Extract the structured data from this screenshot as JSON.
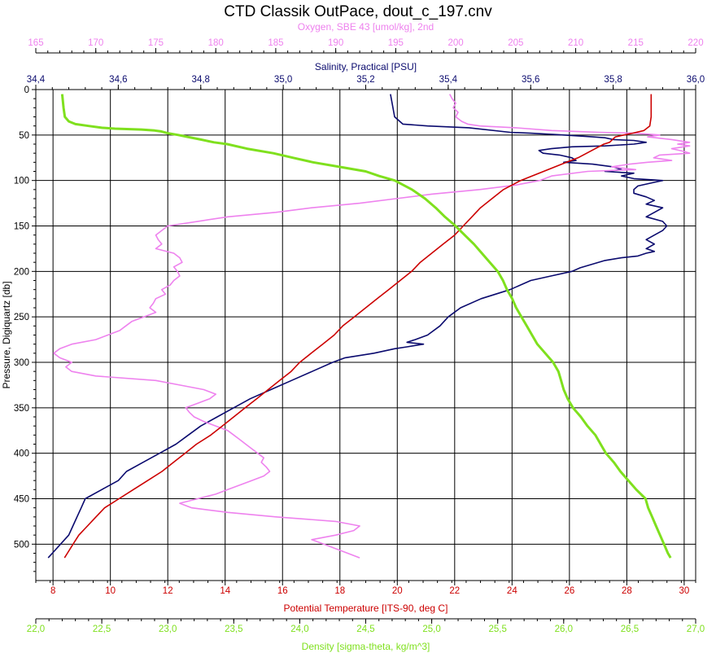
{
  "chart_data": {
    "type": "line",
    "title": "CTD Classik OutPace, dout_c_197.cnv",
    "grid": true,
    "colors": {
      "salinity": "#0a0a6e",
      "oxygen": "#ee82ee",
      "temperature": "#cc0000",
      "density": "#7fe01e"
    },
    "axes": {
      "pressure": {
        "label": "Pressure, Digiquartz [db]",
        "range": [
          0,
          540
        ],
        "reversed": true,
        "ticks": [
          "0",
          "50",
          "100",
          "150",
          "200",
          "250",
          "300",
          "350",
          "400",
          "450",
          "500"
        ]
      },
      "oxygen": {
        "label": "Oxygen, SBE 43 [umol/kg], 2nd",
        "range": [
          165,
          220
        ],
        "ticks": [
          "165",
          "170",
          "175",
          "180",
          "185",
          "190",
          "195",
          "200",
          "205",
          "210",
          "215",
          "220"
        ]
      },
      "salinity": {
        "label": "Salinity, Practical [PSU]",
        "range": [
          34.4,
          36.0
        ],
        "ticks": [
          "34,4",
          "34,6",
          "34,8",
          "35,0",
          "35,2",
          "35,4",
          "35,6",
          "35,8",
          "36,0"
        ]
      },
      "temperature": {
        "label": "Potential Temperature [ITS-90, deg C]",
        "range": [
          7.4,
          30.4
        ],
        "ticks": [
          "8",
          "10",
          "12",
          "14",
          "16",
          "18",
          "20",
          "22",
          "24",
          "26",
          "28",
          "30"
        ]
      },
      "density": {
        "label": "Density [sigma-theta, kg/m^3]",
        "range": [
          22.0,
          27.0
        ],
        "ticks": [
          "22,0",
          "22,5",
          "23,0",
          "23,5",
          "24,0",
          "24,5",
          "25,0",
          "25,5",
          "26,0",
          "26,5",
          "27,0"
        ]
      }
    },
    "series": [
      {
        "key": "salinity",
        "pressure": [
          5,
          30,
          38,
          40,
          42,
          47,
          48,
          50,
          52,
          53,
          55,
          56,
          58,
          60,
          62,
          63,
          65,
          67,
          70,
          72,
          75,
          78,
          80,
          82,
          85,
          88,
          90,
          92,
          95,
          98,
          100,
          102,
          104,
          106,
          110,
          114,
          118,
          122,
          126,
          130,
          135,
          140,
          145,
          150,
          155,
          160,
          165,
          170,
          175,
          178,
          180,
          183,
          185,
          188,
          192,
          196,
          200,
          205,
          210,
          220,
          230,
          240,
          250,
          260,
          270,
          275,
          278,
          280,
          283,
          285,
          290,
          295,
          300,
          310,
          320,
          330,
          340,
          350,
          360,
          370,
          380,
          390,
          400,
          410,
          420,
          430,
          440,
          450,
          460,
          470,
          480,
          490,
          500,
          510,
          515
        ],
        "values": [
          35.26,
          35.27,
          35.29,
          35.35,
          35.45,
          35.55,
          35.6,
          35.68,
          35.75,
          35.78,
          35.8,
          35.85,
          35.88,
          35.85,
          35.78,
          35.7,
          35.65,
          35.62,
          35.63,
          35.67,
          35.7,
          35.71,
          35.68,
          35.75,
          35.8,
          35.82,
          35.78,
          35.85,
          35.82,
          35.85,
          35.92,
          35.9,
          35.88,
          35.86,
          35.85,
          35.85,
          35.88,
          35.9,
          35.88,
          35.92,
          35.9,
          35.88,
          35.92,
          35.93,
          35.92,
          35.9,
          35.88,
          35.9,
          35.88,
          35.9,
          35.88,
          35.86,
          35.82,
          35.78,
          35.75,
          35.72,
          35.7,
          35.65,
          35.6,
          35.55,
          35.48,
          35.43,
          35.4,
          35.38,
          35.35,
          35.32,
          35.3,
          35.34,
          35.3,
          35.27,
          35.22,
          35.15,
          35.12,
          35.07,
          35.02,
          34.97,
          34.92,
          34.88,
          34.84,
          34.8,
          34.77,
          34.74,
          34.7,
          34.66,
          34.62,
          34.6,
          34.56,
          34.52,
          34.51,
          34.5,
          34.49,
          34.48,
          34.46,
          34.44,
          34.43
        ]
      },
      {
        "key": "oxygen",
        "pressure": [
          5,
          10,
          15,
          20,
          25,
          30,
          35,
          38,
          40,
          42,
          45,
          47,
          48,
          50,
          52,
          55,
          58,
          60,
          62,
          65,
          68,
          70,
          72,
          75,
          78,
          80,
          82,
          85,
          88,
          90,
          95,
          100,
          105,
          110,
          115,
          120,
          125,
          130,
          135,
          140,
          145,
          150,
          155,
          160,
          165,
          170,
          175,
          180,
          185,
          190,
          195,
          200,
          205,
          210,
          215,
          220,
          225,
          230,
          235,
          240,
          245,
          250,
          255,
          260,
          265,
          270,
          275,
          280,
          285,
          290,
          295,
          300,
          305,
          310,
          315,
          320,
          325,
          330,
          335,
          340,
          345,
          350,
          355,
          360,
          365,
          370,
          375,
          380,
          385,
          390,
          395,
          400,
          405,
          410,
          415,
          420,
          425,
          430,
          435,
          440,
          445,
          450,
          455,
          460,
          465,
          470,
          475,
          480,
          485,
          490,
          495,
          500,
          505,
          510,
          515
        ],
        "values": [
          199.5,
          199.7,
          200,
          199.8,
          200.2,
          200,
          200.5,
          201,
          202,
          205,
          208,
          212,
          215,
          217,
          216,
          218,
          219.5,
          218.5,
          219.5,
          218,
          219,
          219.5,
          217,
          216.5,
          218,
          216,
          214.5,
          213,
          215,
          211,
          208,
          207,
          205,
          202,
          198,
          195,
          192,
          188,
          185,
          181,
          178.5,
          176,
          175.5,
          175,
          175.2,
          175.5,
          175,
          176.5,
          177,
          177.2,
          176.5,
          176.8,
          177,
          176.5,
          176.2,
          175.5,
          175.8,
          175,
          174.8,
          174.5,
          175,
          174,
          173,
          172.5,
          172,
          171,
          170,
          168,
          167,
          166.5,
          167,
          168,
          167.5,
          168,
          170,
          175,
          177,
          179,
          180,
          179.5,
          178.5,
          177.5,
          177.8,
          178.2,
          179,
          180,
          181,
          181.5,
          182,
          182.5,
          183,
          183.5,
          184,
          183.8,
          184.2,
          184.5,
          184,
          183,
          182,
          181,
          180,
          178.5,
          177,
          178,
          181,
          185,
          190,
          192,
          191.5,
          190,
          188,
          189,
          190,
          191,
          192
        ]
      },
      {
        "key": "temperature",
        "pressure": [
          5,
          20,
          30,
          40,
          45,
          48,
          50,
          52,
          55,
          58,
          60,
          65,
          70,
          75,
          80,
          85,
          90,
          95,
          100,
          110,
          120,
          130,
          140,
          150,
          160,
          170,
          180,
          190,
          200,
          210,
          220,
          230,
          240,
          250,
          260,
          270,
          280,
          290,
          300,
          310,
          320,
          330,
          340,
          350,
          360,
          370,
          380,
          390,
          400,
          410,
          420,
          430,
          440,
          450,
          460,
          470,
          480,
          490,
          500,
          510,
          515
        ],
        "values": [
          28.85,
          28.85,
          28.85,
          28.8,
          28.6,
          28.2,
          27.9,
          27.6,
          27.5,
          27.4,
          27.2,
          26.9,
          26.6,
          26.3,
          25.9,
          25.5,
          25.1,
          24.7,
          24.3,
          23.7,
          23.3,
          22.9,
          22.6,
          22.3,
          22.0,
          21.6,
          21.2,
          20.8,
          20.5,
          20.1,
          19.7,
          19.3,
          18.9,
          18.5,
          18.1,
          17.8,
          17.4,
          17.0,
          16.6,
          16.3,
          15.9,
          15.5,
          15.1,
          14.7,
          14.3,
          13.9,
          13.5,
          13.0,
          12.6,
          12.2,
          11.8,
          11.3,
          10.8,
          10.3,
          9.8,
          9.5,
          9.2,
          8.9,
          8.7,
          8.5,
          8.4
        ]
      },
      {
        "key": "density",
        "pressure": [
          5,
          20,
          30,
          35,
          38,
          40,
          42,
          43,
          44,
          45,
          46,
          48,
          50,
          52,
          55,
          58,
          60,
          65,
          70,
          75,
          80,
          85,
          90,
          95,
          100,
          110,
          120,
          130,
          140,
          150,
          160,
          170,
          180,
          190,
          200,
          210,
          220,
          230,
          240,
          250,
          260,
          270,
          280,
          290,
          300,
          310,
          320,
          330,
          340,
          350,
          360,
          370,
          380,
          390,
          400,
          410,
          420,
          430,
          440,
          450,
          460,
          470,
          480,
          490,
          500,
          510,
          515
        ],
        "values": [
          22.2,
          22.21,
          22.22,
          22.25,
          22.3,
          22.4,
          22.5,
          22.6,
          22.8,
          22.9,
          22.95,
          23.0,
          23.08,
          23.15,
          23.25,
          23.35,
          23.45,
          23.6,
          23.8,
          23.95,
          24.1,
          24.3,
          24.5,
          24.6,
          24.72,
          24.85,
          24.95,
          25.03,
          25.1,
          25.18,
          25.25,
          25.32,
          25.38,
          25.44,
          25.5,
          25.54,
          25.57,
          25.61,
          25.64,
          25.68,
          25.72,
          25.76,
          25.8,
          25.86,
          25.92,
          25.96,
          25.98,
          26.0,
          26.03,
          26.07,
          26.13,
          26.18,
          26.24,
          26.28,
          26.32,
          26.38,
          26.43,
          26.49,
          26.55,
          26.62,
          26.64,
          26.67,
          26.7,
          26.73,
          26.76,
          26.79,
          26.81
        ]
      }
    ]
  }
}
